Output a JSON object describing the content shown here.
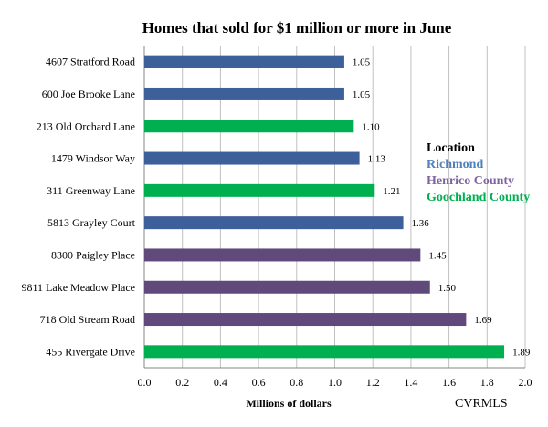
{
  "chart_data": {
    "type": "bar",
    "orientation": "horizontal",
    "title": "Homes that sold for $1 million or more in June",
    "xlabel": "Millions of dollars",
    "source": "CVRMLS",
    "xlim": [
      0,
      2.0
    ],
    "xticks": [
      "0.0",
      "0.2",
      "0.4",
      "0.6",
      "0.8",
      "1.0",
      "1.2",
      "1.4",
      "1.6",
      "1.8",
      "2.0"
    ],
    "grid": "vertical",
    "legend": {
      "title": "Location",
      "placement": "right",
      "items": [
        {
          "name": "Richmond",
          "color": "#4f81bd"
        },
        {
          "name": "Henrico County",
          "color": "#8064a2"
        },
        {
          "name": "Goochland County",
          "color": "#00b050"
        }
      ]
    },
    "bar_colors": {
      "Richmond": "#3d5f9a",
      "Henrico County": "#604a7b",
      "Goochland County": "#00b050"
    },
    "categories": [
      "4607 Stratford Road",
      "600 Joe Brooke Lane",
      "213 Old Orchard Lane",
      "1479 Windsor Way",
      "311 Greenway Lane",
      "5813 Grayley Court",
      "8300 Paigley Place",
      "9811 Lake Meadow Place",
      "718 Old Stream Road",
      "455 Rivergate Drive"
    ],
    "values": [
      1.05,
      1.05,
      1.1,
      1.13,
      1.21,
      1.36,
      1.45,
      1.5,
      1.69,
      1.89
    ],
    "value_labels": [
      "1.05",
      "1.05",
      "1.10",
      "1.13",
      "1.21",
      "1.36",
      "1.45",
      "1.50",
      "1.69",
      "1.89"
    ],
    "locations": [
      "Richmond",
      "Richmond",
      "Goochland County",
      "Richmond",
      "Goochland County",
      "Richmond",
      "Henrico County",
      "Henrico County",
      "Henrico County",
      "Goochland County"
    ]
  }
}
